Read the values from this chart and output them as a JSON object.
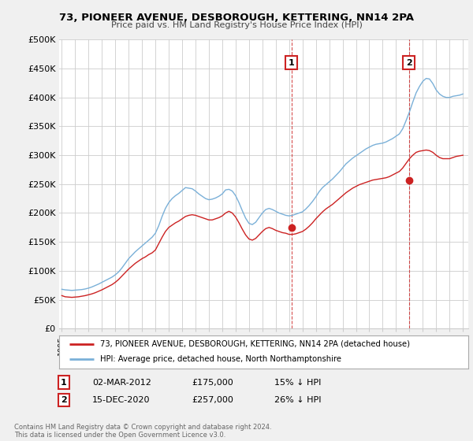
{
  "title": "73, PIONEER AVENUE, DESBOROUGH, KETTERING, NN14 2PA",
  "subtitle": "Price paid vs. HM Land Registry's House Price Index (HPI)",
  "ylabel_ticks": [
    "£0",
    "£50K",
    "£100K",
    "£150K",
    "£200K",
    "£250K",
    "£300K",
    "£350K",
    "£400K",
    "£450K",
    "£500K"
  ],
  "ytick_vals": [
    0,
    50000,
    100000,
    150000,
    200000,
    250000,
    300000,
    350000,
    400000,
    450000,
    500000
  ],
  "xlim_start": 1994.8,
  "xlim_end": 2025.4,
  "ylim": [
    0,
    500000
  ],
  "bg_color": "#f0f0f0",
  "plot_bg": "#ffffff",
  "grid_color": "#cccccc",
  "hpi_color": "#7ab0d8",
  "price_color": "#cc2222",
  "sale1_x": 2012.17,
  "sale1_y": 175000,
  "sale2_x": 2020.96,
  "sale2_y": 257000,
  "legend_entry1": "73, PIONEER AVENUE, DESBOROUGH, KETTERING, NN14 2PA (detached house)",
  "legend_entry2": "HPI: Average price, detached house, North Northamptonshire",
  "annotation1_label": "1",
  "annotation1_date": "02-MAR-2012",
  "annotation1_price": "£175,000",
  "annotation1_pct": "15% ↓ HPI",
  "annotation2_label": "2",
  "annotation2_date": "15-DEC-2020",
  "annotation2_price": "£257,000",
  "annotation2_pct": "26% ↓ HPI",
  "footer": "Contains HM Land Registry data © Crown copyright and database right 2024.\nThis data is licensed under the Open Government Licence v3.0.",
  "hpi_data": [
    [
      1995.0,
      68000
    ],
    [
      1995.25,
      67000
    ],
    [
      1995.5,
      66500
    ],
    [
      1995.75,
      66000
    ],
    [
      1996.0,
      66500
    ],
    [
      1996.25,
      67000
    ],
    [
      1996.5,
      67500
    ],
    [
      1996.75,
      68500
    ],
    [
      1997.0,
      70000
    ],
    [
      1997.25,
      72000
    ],
    [
      1997.5,
      74500
    ],
    [
      1997.75,
      77000
    ],
    [
      1998.0,
      80000
    ],
    [
      1998.25,
      83000
    ],
    [
      1998.5,
      86000
    ],
    [
      1998.75,
      89000
    ],
    [
      1999.0,
      93000
    ],
    [
      1999.25,
      98000
    ],
    [
      1999.5,
      105000
    ],
    [
      1999.75,
      113000
    ],
    [
      2000.0,
      121000
    ],
    [
      2000.25,
      127000
    ],
    [
      2000.5,
      133000
    ],
    [
      2000.75,
      138000
    ],
    [
      2001.0,
      143000
    ],
    [
      2001.25,
      148000
    ],
    [
      2001.5,
      153000
    ],
    [
      2001.75,
      158000
    ],
    [
      2002.0,
      165000
    ],
    [
      2002.25,
      178000
    ],
    [
      2002.5,
      194000
    ],
    [
      2002.75,
      208000
    ],
    [
      2003.0,
      218000
    ],
    [
      2003.25,
      225000
    ],
    [
      2003.5,
      230000
    ],
    [
      2003.75,
      234000
    ],
    [
      2004.0,
      239000
    ],
    [
      2004.25,
      244000
    ],
    [
      2004.5,
      243000
    ],
    [
      2004.75,
      242000
    ],
    [
      2005.0,
      238000
    ],
    [
      2005.25,
      233000
    ],
    [
      2005.5,
      229000
    ],
    [
      2005.75,
      225000
    ],
    [
      2006.0,
      223000
    ],
    [
      2006.25,
      224000
    ],
    [
      2006.5,
      226000
    ],
    [
      2006.75,
      229000
    ],
    [
      2007.0,
      233000
    ],
    [
      2007.25,
      240000
    ],
    [
      2007.5,
      241000
    ],
    [
      2007.75,
      238000
    ],
    [
      2008.0,
      230000
    ],
    [
      2008.25,
      218000
    ],
    [
      2008.5,
      204000
    ],
    [
      2008.75,
      191000
    ],
    [
      2009.0,
      182000
    ],
    [
      2009.25,
      180000
    ],
    [
      2009.5,
      184000
    ],
    [
      2009.75,
      192000
    ],
    [
      2010.0,
      200000
    ],
    [
      2010.25,
      206000
    ],
    [
      2010.5,
      208000
    ],
    [
      2010.75,
      206000
    ],
    [
      2011.0,
      203000
    ],
    [
      2011.25,
      200000
    ],
    [
      2011.5,
      198000
    ],
    [
      2011.75,
      196000
    ],
    [
      2012.0,
      195000
    ],
    [
      2012.25,
      196000
    ],
    [
      2012.5,
      198000
    ],
    [
      2012.75,
      200000
    ],
    [
      2013.0,
      202000
    ],
    [
      2013.25,
      207000
    ],
    [
      2013.5,
      213000
    ],
    [
      2013.75,
      220000
    ],
    [
      2014.0,
      228000
    ],
    [
      2014.25,
      237000
    ],
    [
      2014.5,
      244000
    ],
    [
      2014.75,
      249000
    ],
    [
      2015.0,
      254000
    ],
    [
      2015.25,
      259000
    ],
    [
      2015.5,
      265000
    ],
    [
      2015.75,
      271000
    ],
    [
      2016.0,
      278000
    ],
    [
      2016.25,
      285000
    ],
    [
      2016.5,
      290000
    ],
    [
      2016.75,
      295000
    ],
    [
      2017.0,
      299000
    ],
    [
      2017.25,
      303000
    ],
    [
      2017.5,
      307000
    ],
    [
      2017.75,
      311000
    ],
    [
      2018.0,
      314000
    ],
    [
      2018.25,
      317000
    ],
    [
      2018.5,
      319000
    ],
    [
      2018.75,
      320000
    ],
    [
      2019.0,
      321000
    ],
    [
      2019.25,
      323000
    ],
    [
      2019.5,
      326000
    ],
    [
      2019.75,
      329000
    ],
    [
      2020.0,
      333000
    ],
    [
      2020.25,
      337000
    ],
    [
      2020.5,
      346000
    ],
    [
      2020.75,
      360000
    ],
    [
      2021.0,
      375000
    ],
    [
      2021.25,
      392000
    ],
    [
      2021.5,
      408000
    ],
    [
      2021.75,
      419000
    ],
    [
      2022.0,
      428000
    ],
    [
      2022.25,
      433000
    ],
    [
      2022.5,
      432000
    ],
    [
      2022.75,
      424000
    ],
    [
      2023.0,
      413000
    ],
    [
      2023.25,
      406000
    ],
    [
      2023.5,
      402000
    ],
    [
      2023.75,
      400000
    ],
    [
      2024.0,
      400000
    ],
    [
      2024.25,
      402000
    ],
    [
      2024.5,
      403000
    ],
    [
      2024.75,
      404000
    ],
    [
      2025.0,
      406000
    ]
  ],
  "price_data": [
    [
      1995.0,
      57000
    ],
    [
      1995.25,
      55000
    ],
    [
      1995.5,
      54500
    ],
    [
      1995.75,
      54000
    ],
    [
      1996.0,
      54500
    ],
    [
      1996.25,
      55000
    ],
    [
      1996.5,
      56000
    ],
    [
      1996.75,
      57000
    ],
    [
      1997.0,
      58500
    ],
    [
      1997.25,
      60000
    ],
    [
      1997.5,
      62000
    ],
    [
      1997.75,
      64500
    ],
    [
      1998.0,
      67000
    ],
    [
      1998.25,
      70000
    ],
    [
      1998.5,
      73000
    ],
    [
      1998.75,
      76000
    ],
    [
      1999.0,
      80000
    ],
    [
      1999.25,
      85000
    ],
    [
      1999.5,
      91000
    ],
    [
      1999.75,
      97000
    ],
    [
      2000.0,
      103000
    ],
    [
      2000.25,
      108000
    ],
    [
      2000.5,
      113000
    ],
    [
      2000.75,
      117000
    ],
    [
      2001.0,
      121000
    ],
    [
      2001.25,
      124000
    ],
    [
      2001.5,
      128000
    ],
    [
      2001.75,
      131000
    ],
    [
      2002.0,
      136000
    ],
    [
      2002.25,
      147000
    ],
    [
      2002.5,
      158000
    ],
    [
      2002.75,
      168000
    ],
    [
      2003.0,
      175000
    ],
    [
      2003.25,
      179000
    ],
    [
      2003.5,
      183000
    ],
    [
      2003.75,
      186000
    ],
    [
      2004.0,
      190000
    ],
    [
      2004.25,
      194000
    ],
    [
      2004.5,
      196000
    ],
    [
      2004.75,
      197000
    ],
    [
      2005.0,
      196000
    ],
    [
      2005.25,
      194000
    ],
    [
      2005.5,
      192000
    ],
    [
      2005.75,
      190000
    ],
    [
      2006.0,
      188000
    ],
    [
      2006.25,
      188000
    ],
    [
      2006.5,
      190000
    ],
    [
      2006.75,
      192000
    ],
    [
      2007.0,
      195000
    ],
    [
      2007.25,
      200000
    ],
    [
      2007.5,
      203000
    ],
    [
      2007.75,
      200000
    ],
    [
      2008.0,
      193000
    ],
    [
      2008.25,
      183000
    ],
    [
      2008.5,
      172000
    ],
    [
      2008.75,
      162000
    ],
    [
      2009.0,
      155000
    ],
    [
      2009.25,
      153000
    ],
    [
      2009.5,
      156000
    ],
    [
      2009.75,
      162000
    ],
    [
      2010.0,
      168000
    ],
    [
      2010.25,
      173000
    ],
    [
      2010.5,
      175000
    ],
    [
      2010.75,
      173000
    ],
    [
      2011.0,
      170000
    ],
    [
      2011.25,
      168000
    ],
    [
      2011.5,
      166000
    ],
    [
      2011.75,
      165000
    ],
    [
      2012.0,
      163000
    ],
    [
      2012.25,
      163000
    ],
    [
      2012.5,
      164000
    ],
    [
      2012.75,
      166000
    ],
    [
      2013.0,
      168000
    ],
    [
      2013.25,
      172000
    ],
    [
      2013.5,
      177000
    ],
    [
      2013.75,
      183000
    ],
    [
      2014.0,
      190000
    ],
    [
      2014.25,
      196000
    ],
    [
      2014.5,
      202000
    ],
    [
      2014.75,
      207000
    ],
    [
      2015.0,
      211000
    ],
    [
      2015.25,
      215000
    ],
    [
      2015.5,
      220000
    ],
    [
      2015.75,
      225000
    ],
    [
      2016.0,
      230000
    ],
    [
      2016.25,
      235000
    ],
    [
      2016.5,
      239000
    ],
    [
      2016.75,
      243000
    ],
    [
      2017.0,
      246000
    ],
    [
      2017.25,
      249000
    ],
    [
      2017.5,
      251000
    ],
    [
      2017.75,
      253000
    ],
    [
      2018.0,
      255000
    ],
    [
      2018.25,
      257000
    ],
    [
      2018.5,
      258000
    ],
    [
      2018.75,
      259000
    ],
    [
      2019.0,
      260000
    ],
    [
      2019.25,
      261000
    ],
    [
      2019.5,
      263000
    ],
    [
      2019.75,
      266000
    ],
    [
      2020.0,
      269000
    ],
    [
      2020.25,
      272000
    ],
    [
      2020.5,
      278000
    ],
    [
      2020.75,
      286000
    ],
    [
      2021.0,
      294000
    ],
    [
      2021.25,
      300000
    ],
    [
      2021.5,
      305000
    ],
    [
      2021.75,
      307000
    ],
    [
      2022.0,
      308000
    ],
    [
      2022.25,
      309000
    ],
    [
      2022.5,
      308000
    ],
    [
      2022.75,
      305000
    ],
    [
      2023.0,
      300000
    ],
    [
      2023.25,
      296000
    ],
    [
      2023.5,
      294000
    ],
    [
      2023.75,
      294000
    ],
    [
      2024.0,
      294000
    ],
    [
      2024.25,
      296000
    ],
    [
      2024.5,
      298000
    ],
    [
      2024.75,
      299000
    ],
    [
      2025.0,
      300000
    ]
  ]
}
